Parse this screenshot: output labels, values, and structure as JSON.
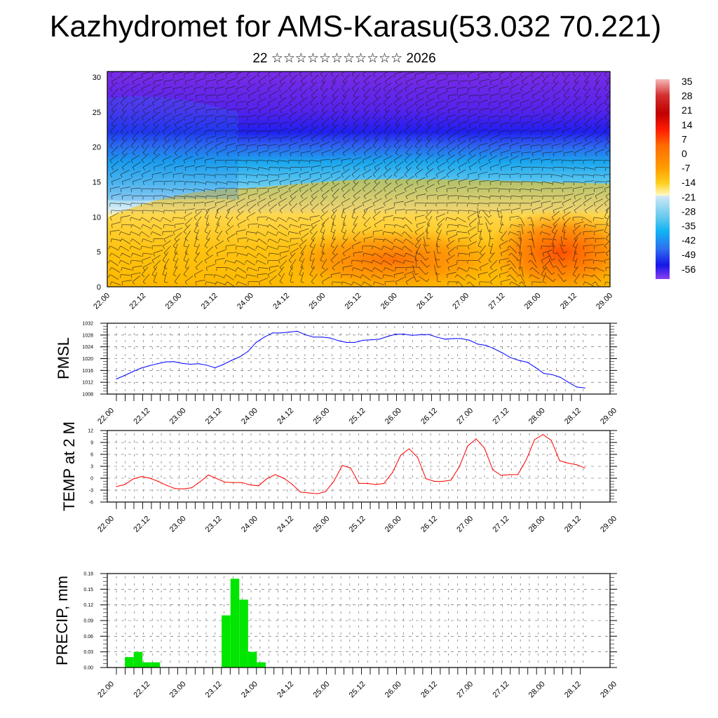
{
  "title": "Kazhydromet for AMS-Karasu(53.032 70.221)",
  "subtitle": "22 ☆☆☆☆☆☆☆☆☆☆☆ 2026",
  "colors": {
    "pmsl_line": "#0000ff",
    "temp_line": "#ff0000",
    "precip_bar": "#00e600"
  },
  "x_tick_labels": [
    "22.00",
    "22.12",
    "23.00",
    "23.12",
    "24.00",
    "24.12",
    "25.00",
    "25.12",
    "26.00",
    "26.12",
    "27.00",
    "27.12",
    "28.00",
    "28.12",
    "29.00"
  ],
  "chart_data": [
    {
      "type": "heatmap",
      "name": "cross-section",
      "ylim": [
        0,
        30
      ],
      "yticks": [
        "0",
        "5",
        "10",
        "15",
        "20",
        "25",
        "30"
      ],
      "colorbar_labels": [
        "35",
        "28",
        "21",
        "14",
        "7",
        "0",
        "-7",
        "-14",
        "-21",
        "-28",
        "-35",
        "-42",
        "-49",
        "-56"
      ],
      "colorbar_range": [
        -60,
        38
      ]
    },
    {
      "type": "line",
      "name": "pmsl",
      "ylabel": "PMSL",
      "ylim": [
        1008,
        1032
      ],
      "yticks": [
        "1008",
        "1012",
        "1016",
        "1020",
        "1024",
        "1028",
        "1032"
      ],
      "step_hours": 3,
      "values": [
        1013.1,
        1014.3,
        1015.6,
        1016.8,
        1017.6,
        1018.3,
        1018.9,
        1019.0,
        1018.4,
        1018.1,
        1018.3,
        1017.8,
        1016.9,
        1018.0,
        1019.4,
        1020.6,
        1022.4,
        1025.5,
        1027.3,
        1028.7,
        1028.7,
        1029.0,
        1029.3,
        1028.1,
        1027.3,
        1027.3,
        1027.0,
        1026.1,
        1025.5,
        1025.5,
        1026.2,
        1026.4,
        1026.6,
        1027.5,
        1028.3,
        1028.3,
        1027.9,
        1028.1,
        1028.2,
        1027.3,
        1026.6,
        1026.8,
        1026.8,
        1026.2,
        1024.9,
        1024.5,
        1023.3,
        1021.9,
        1020.3,
        1019.4,
        1018.8,
        1017.0,
        1015.0,
        1014.6,
        1013.7,
        1012.0,
        1010.4,
        1010.1
      ]
    },
    {
      "type": "line",
      "name": "temp",
      "ylabel": "TEMP at 2 M",
      "ylim": [
        -6,
        12
      ],
      "yticks": [
        "-6",
        "-3",
        "0",
        "3",
        "6",
        "9",
        "12"
      ],
      "step_hours": 3,
      "values": [
        -2.1,
        -1.6,
        -0.2,
        0.4,
        0.0,
        -0.8,
        -1.8,
        -2.6,
        -2.7,
        -2.4,
        -0.9,
        0.8,
        -0.1,
        -1.0,
        -1.1,
        -1.1,
        -1.7,
        -1.9,
        -0.1,
        0.9,
        0.0,
        -1.5,
        -3.5,
        -3.7,
        -3.9,
        -3.4,
        -0.8,
        3.2,
        2.6,
        -1.3,
        -1.3,
        -1.6,
        -1.3,
        1.4,
        5.8,
        7.4,
        5.3,
        -0.1,
        -0.8,
        -0.8,
        -0.5,
        2.9,
        8.1,
        9.9,
        7.6,
        2.1,
        0.7,
        0.9,
        0.9,
        4.6,
        9.7,
        11.0,
        9.5,
        4.4,
        3.8,
        3.4,
        2.6
      ]
    },
    {
      "type": "bar",
      "name": "precip",
      "ylabel": "PRECIP, mm",
      "ylim": [
        0,
        0.18
      ],
      "yticks": [
        "0.00",
        "0.03",
        "0.06",
        "0.09",
        "0.12",
        "0.15",
        "0.18"
      ],
      "step_hours": 3,
      "values": [
        0,
        0,
        0.02,
        0.03,
        0.01,
        0.01,
        0,
        0,
        0,
        0,
        0,
        0,
        0,
        0.1,
        0.17,
        0.13,
        0.03,
        0.01,
        0,
        0,
        0,
        0,
        0,
        0,
        0,
        0,
        0,
        0,
        0,
        0,
        0,
        0,
        0,
        0,
        0,
        0,
        0,
        0,
        0,
        0,
        0,
        0,
        0,
        0,
        0,
        0,
        0,
        0,
        0,
        0,
        0,
        0,
        0,
        0,
        0,
        0
      ]
    }
  ]
}
